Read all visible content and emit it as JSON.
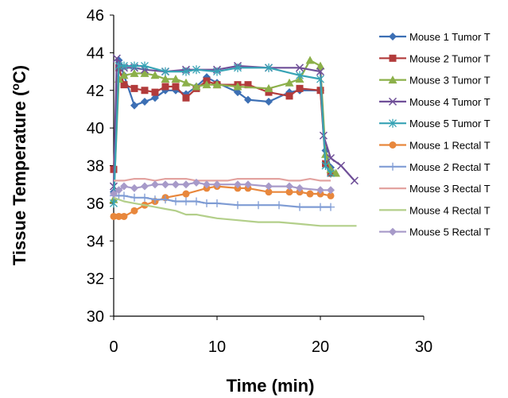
{
  "chart_data": {
    "type": "line",
    "xlabel": "Time (min)",
    "ylabel": "Tissue Temperature (",
    "ylabel_unit_sup": "o",
    "ylabel_unit_tail": "C)",
    "xlim": [
      0,
      30
    ],
    "ylim": [
      30,
      46
    ],
    "xticks": [
      "0",
      "10",
      "20",
      "30"
    ],
    "yticks": [
      "30",
      "32",
      "34",
      "36",
      "38",
      "40",
      "42",
      "44",
      "46"
    ],
    "grid": false,
    "legend_position": "right",
    "series": [
      {
        "name": "Mouse 1 Tumor T",
        "color": "#3c6fb4",
        "marker": "diamond",
        "points": [
          [
            0,
            36.6
          ],
          [
            0.5,
            43.6
          ],
          [
            1,
            42.8
          ],
          [
            2,
            41.2
          ],
          [
            3,
            41.4
          ],
          [
            4,
            41.6
          ],
          [
            5,
            42.0
          ],
          [
            6,
            42.0
          ],
          [
            7,
            41.8
          ],
          [
            8,
            42.2
          ],
          [
            9,
            42.7
          ],
          [
            10,
            42.4
          ],
          [
            12,
            41.9
          ],
          [
            13,
            41.5
          ],
          [
            15,
            41.4
          ],
          [
            17,
            41.9
          ],
          [
            18,
            42.0
          ],
          [
            20,
            42.0
          ],
          [
            20.5,
            38.8
          ],
          [
            21,
            37.9
          ]
        ]
      },
      {
        "name": "Mouse 2 Tumor T",
        "color": "#b23b3b",
        "marker": "square",
        "points": [
          [
            0,
            37.8
          ],
          [
            0.5,
            43.2
          ],
          [
            1,
            42.3
          ],
          [
            2,
            42.1
          ],
          [
            3,
            42.0
          ],
          [
            4,
            41.9
          ],
          [
            5,
            42.2
          ],
          [
            6,
            42.2
          ],
          [
            7,
            41.6
          ],
          [
            8,
            42.1
          ],
          [
            9,
            42.5
          ],
          [
            10,
            42.3
          ],
          [
            12,
            42.3
          ],
          [
            13,
            42.3
          ],
          [
            15,
            41.9
          ],
          [
            17,
            41.7
          ],
          [
            18,
            42.1
          ],
          [
            20,
            42.0
          ],
          [
            20.5,
            38.1
          ],
          [
            21,
            37.6
          ]
        ]
      },
      {
        "name": "Mouse 3 Tumor T",
        "color": "#8cb04a",
        "marker": "triangle",
        "points": [
          [
            0,
            36.2
          ],
          [
            0.5,
            42.6
          ],
          [
            1,
            42.8
          ],
          [
            2,
            42.9
          ],
          [
            3,
            42.9
          ],
          [
            4,
            42.8
          ],
          [
            5,
            42.6
          ],
          [
            6,
            42.6
          ],
          [
            7,
            42.4
          ],
          [
            8,
            42.2
          ],
          [
            9,
            42.3
          ],
          [
            10,
            42.3
          ],
          [
            12,
            42.2
          ],
          [
            15,
            42.1
          ],
          [
            17,
            42.4
          ],
          [
            18,
            42.6
          ],
          [
            19,
            43.6
          ],
          [
            20,
            43.3
          ],
          [
            20.5,
            38.6
          ],
          [
            21,
            37.8
          ],
          [
            21.5,
            37.6
          ]
        ]
      },
      {
        "name": "Mouse 4 Tumor T",
        "color": "#6f4f98",
        "marker": "x",
        "points": [
          [
            0,
            36.9
          ],
          [
            0.3,
            43.7
          ],
          [
            1,
            43.2
          ],
          [
            2,
            43.2
          ],
          [
            3,
            43.1
          ],
          [
            5,
            43.0
          ],
          [
            7,
            43.1
          ],
          [
            10,
            43.1
          ],
          [
            12,
            43.3
          ],
          [
            15,
            43.2
          ],
          [
            18,
            43.2
          ],
          [
            20,
            43.0
          ],
          [
            20.3,
            39.6
          ],
          [
            21,
            38.4
          ],
          [
            22,
            38.0
          ],
          [
            23.3,
            37.2
          ]
        ]
      },
      {
        "name": "Mouse 5 Tumor T",
        "color": "#37a3b5",
        "marker": "asterisk",
        "points": [
          [
            0,
            36.0
          ],
          [
            0.5,
            43.3
          ],
          [
            1,
            43.3
          ],
          [
            2,
            43.3
          ],
          [
            3,
            43.3
          ],
          [
            5,
            43.0
          ],
          [
            7,
            43.0
          ],
          [
            8,
            43.1
          ],
          [
            10,
            43.0
          ],
          [
            12,
            43.2
          ],
          [
            15,
            43.2
          ],
          [
            18,
            42.8
          ],
          [
            20,
            42.6
          ],
          [
            20.5,
            38.0
          ],
          [
            21,
            37.6
          ]
        ]
      },
      {
        "name": "Mouse 1 Rectal T",
        "color": "#e8873c",
        "marker": "circle",
        "points": [
          [
            0,
            35.3
          ],
          [
            0.5,
            35.3
          ],
          [
            1,
            35.3
          ],
          [
            2,
            35.6
          ],
          [
            3,
            35.9
          ],
          [
            4,
            36.1
          ],
          [
            5,
            36.3
          ],
          [
            7,
            36.5
          ],
          [
            9,
            36.8
          ],
          [
            10,
            36.9
          ],
          [
            12,
            36.8
          ],
          [
            13,
            36.8
          ],
          [
            15,
            36.6
          ],
          [
            17,
            36.6
          ],
          [
            18,
            36.6
          ],
          [
            19,
            36.5
          ],
          [
            20,
            36.5
          ],
          [
            21,
            36.4
          ]
        ]
      },
      {
        "name": "Mouse 2 Rectal T",
        "color": "#7f9cd4",
        "marker": "plus",
        "points": [
          [
            0,
            36.4
          ],
          [
            0.5,
            36.4
          ],
          [
            1,
            36.4
          ],
          [
            2,
            36.3
          ],
          [
            3,
            36.3
          ],
          [
            4,
            36.2
          ],
          [
            5,
            36.2
          ],
          [
            6,
            36.1
          ],
          [
            7,
            36.1
          ],
          [
            8,
            36.1
          ],
          [
            9,
            36.0
          ],
          [
            10,
            36.0
          ],
          [
            12,
            35.9
          ],
          [
            14,
            35.9
          ],
          [
            16,
            35.9
          ],
          [
            18,
            35.8
          ],
          [
            20,
            35.8
          ],
          [
            21,
            35.8
          ]
        ]
      },
      {
        "name": "Mouse 3 Rectal T",
        "color": "#e3a3a0",
        "marker": "none",
        "points": [
          [
            0,
            37.2
          ],
          [
            1,
            37.2
          ],
          [
            2,
            37.3
          ],
          [
            3,
            37.3
          ],
          [
            4,
            37.2
          ],
          [
            5,
            37.3
          ],
          [
            6,
            37.3
          ],
          [
            7,
            37.3
          ],
          [
            8,
            37.2
          ],
          [
            9,
            37.2
          ],
          [
            10,
            37.2
          ],
          [
            11,
            37.2
          ],
          [
            12,
            37.3
          ],
          [
            13,
            37.3
          ],
          [
            14,
            37.3
          ],
          [
            15,
            37.3
          ],
          [
            16,
            37.3
          ],
          [
            17,
            37.2
          ],
          [
            18,
            37.2
          ],
          [
            19,
            37.3
          ],
          [
            20,
            37.2
          ],
          [
            21,
            37.2
          ]
        ]
      },
      {
        "name": "Mouse 4 Rectal T",
        "color": "#b3cf8a",
        "marker": "none",
        "points": [
          [
            0,
            36.3
          ],
          [
            1,
            36.1
          ],
          [
            2,
            36.0
          ],
          [
            3,
            35.9
          ],
          [
            4,
            35.8
          ],
          [
            5,
            35.7
          ],
          [
            6,
            35.6
          ],
          [
            7,
            35.4
          ],
          [
            8,
            35.4
          ],
          [
            9,
            35.3
          ],
          [
            10,
            35.2
          ],
          [
            12,
            35.1
          ],
          [
            14,
            35.0
          ],
          [
            16,
            35.0
          ],
          [
            18,
            34.9
          ],
          [
            20,
            34.8
          ],
          [
            22,
            34.8
          ],
          [
            23.5,
            34.8
          ]
        ]
      },
      {
        "name": "Mouse 5 Rectal T",
        "color": "#a79ac9",
        "marker": "diamond",
        "points": [
          [
            0,
            36.5
          ],
          [
            0.5,
            36.7
          ],
          [
            1,
            36.9
          ],
          [
            2,
            36.8
          ],
          [
            3,
            36.9
          ],
          [
            4,
            37.0
          ],
          [
            5,
            37.0
          ],
          [
            6,
            37.0
          ],
          [
            7,
            37.0
          ],
          [
            8,
            37.1
          ],
          [
            9,
            37.0
          ],
          [
            10,
            37.0
          ],
          [
            12,
            37.0
          ],
          [
            13,
            37.0
          ],
          [
            15,
            36.9
          ],
          [
            17,
            36.9
          ],
          [
            18,
            36.8
          ],
          [
            20,
            36.7
          ],
          [
            21,
            36.7
          ]
        ]
      }
    ]
  }
}
